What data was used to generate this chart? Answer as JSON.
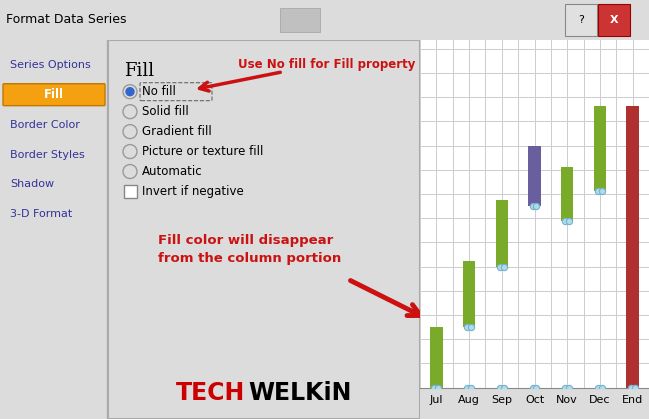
{
  "title_bar_text": "Format Data Series",
  "left_panel_items": [
    "Series Options",
    "Fill",
    "Border Color",
    "Border Styles",
    "Shadow",
    "3-D Format"
  ],
  "fill_selected": "Fill",
  "fill_title": "Fill",
  "fill_options": [
    "No fill",
    "Solid fill",
    "Gradient fill",
    "Picture or texture fill",
    "Automatic"
  ],
  "fill_checkbox": "Invert if negative",
  "selected_radio": 0,
  "annotation1_text": "Use No fill for Fill property",
  "annotation2_text": "Fill color will disappear\nfrom the column portion",
  "brand_text_tech": "TECH",
  "brand_text_welkin": "WELKiN",
  "bg_color": "#dcdcdc",
  "dialog_bg": "#ffffff",
  "left_panel_bg": "#f0f0f0",
  "selected_item_color": "#f4a010",
  "border_color": "#aaaaaa",
  "annotation_color": "#cc1111",
  "chart_categories": [
    "Jul",
    "Aug",
    "Sep",
    "Oct",
    "Nov",
    "Dec",
    "End"
  ],
  "chart_base": [
    0,
    20,
    40,
    60,
    55,
    65,
    0
  ],
  "chart_green": [
    20,
    22,
    22,
    0,
    18,
    28,
    0
  ],
  "chart_purple": [
    0,
    0,
    0,
    20,
    0,
    0,
    0
  ],
  "chart_red": [
    0,
    0,
    0,
    0,
    0,
    0,
    93
  ],
  "green_color": "#7aaa2a",
  "purple_color": "#6a5f9e",
  "red_color": "#b03030",
  "grid_color": "#cccccc",
  "dot_color": "#aaddee",
  "dot_edge_color": "#7ab0cc"
}
